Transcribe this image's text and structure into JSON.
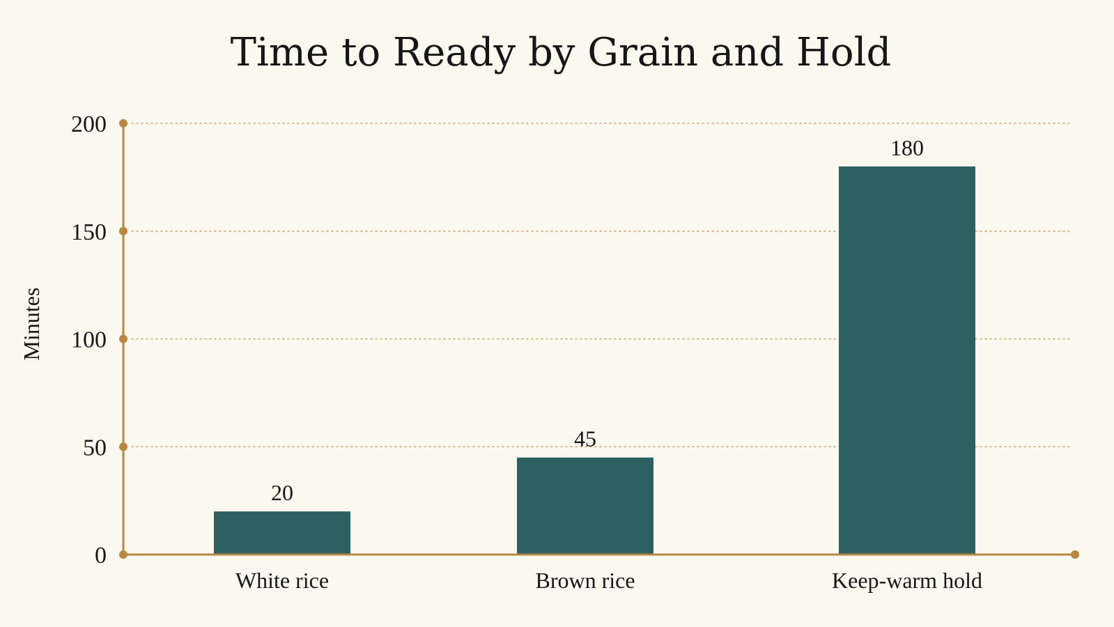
{
  "chart_data": {
    "type": "bar",
    "title": "Time to Ready by Grain and Hold",
    "xlabel": "",
    "ylabel": "Minutes",
    "categories": [
      "White rice",
      "Brown rice",
      "Keep-warm hold"
    ],
    "values": [
      20,
      45,
      180
    ],
    "value_labels": [
      "20",
      "45",
      "180"
    ],
    "ylim": [
      0,
      200
    ],
    "yticks": [
      0,
      50,
      100,
      150,
      200
    ],
    "ytick_labels": [
      "0",
      "50",
      "100",
      "150",
      "200"
    ],
    "grid": "horizontal dotted",
    "legend": "none",
    "colors": {
      "bar": "#2d6061",
      "axis": "#b8873f",
      "grid": "#c9a06a",
      "background": "#fbf8f0",
      "text": "#161616"
    }
  }
}
